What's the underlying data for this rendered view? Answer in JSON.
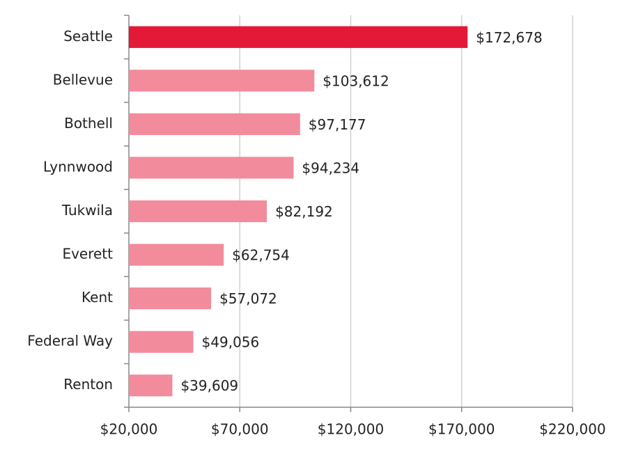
{
  "chart_data": {
    "type": "hbar",
    "categories": [
      "Seattle",
      "Bellevue",
      "Bothell",
      "Lynnwood",
      "Tukwila",
      "Everett",
      "Kent",
      "Federal Way",
      "Renton"
    ],
    "values": [
      172678,
      103612,
      97177,
      94234,
      82192,
      62754,
      57072,
      49056,
      39609
    ],
    "value_labels": [
      "$172,678",
      "$103,612",
      "$97,177",
      "$94,234",
      "$82,192",
      "$62,754",
      "$57,072",
      "$49,056",
      "$39,609"
    ],
    "colors": [
      "#e31937",
      "#f28b9b",
      "#f28b9b",
      "#f28b9b",
      "#f28b9b",
      "#f28b9b",
      "#f28b9b",
      "#f28b9b",
      "#f28b9b"
    ],
    "xlim": [
      20000,
      220000
    ],
    "xticks": [
      {
        "value": 20000,
        "label": "$20,000"
      },
      {
        "value": 70000,
        "label": "$70,000"
      },
      {
        "value": 120000,
        "label": "$120,000"
      },
      {
        "value": 170000,
        "label": "$170,000"
      },
      {
        "value": 220000,
        "label": "$220,000"
      }
    ],
    "grid": true
  }
}
